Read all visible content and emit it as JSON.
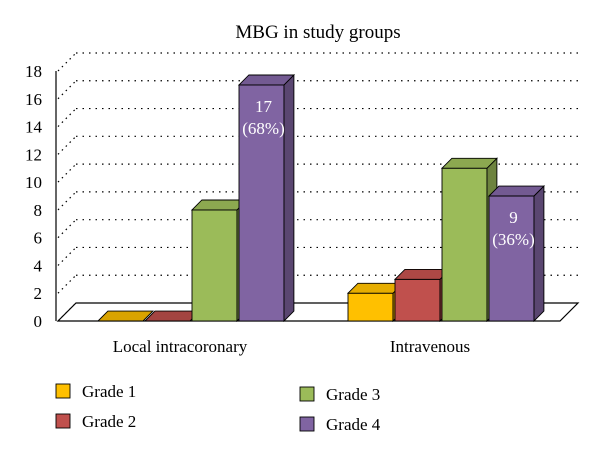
{
  "chart_data": {
    "type": "bar",
    "title": "MBG in study groups",
    "xlabel": "",
    "ylabel": "",
    "categories": [
      "Local intracoronary",
      "Intravenous"
    ],
    "ylim": [
      0,
      18
    ],
    "yticks": [
      0,
      2,
      4,
      6,
      8,
      10,
      12,
      14,
      16,
      18
    ],
    "grid": "horizontal-dotted",
    "legend_position": "bottom",
    "series": [
      {
        "name": "Grade 1",
        "color": "#ffc000",
        "values": [
          0,
          2
        ]
      },
      {
        "name": "Grade 2",
        "color": "#c0504d",
        "values": [
          0,
          3
        ]
      },
      {
        "name": "Grade 3",
        "color": "#9bbb59",
        "values": [
          8,
          11
        ]
      },
      {
        "name": "Grade 4",
        "color": "#8064a2",
        "values": [
          17,
          9
        ]
      }
    ],
    "annotations": [
      {
        "series": "Grade 4",
        "category": "Local intracoronary",
        "lines": [
          "17",
          "(68%)"
        ]
      },
      {
        "series": "Grade 4",
        "category": "Intravenous",
        "lines": [
          "9",
          "(36%)"
        ]
      }
    ]
  }
}
